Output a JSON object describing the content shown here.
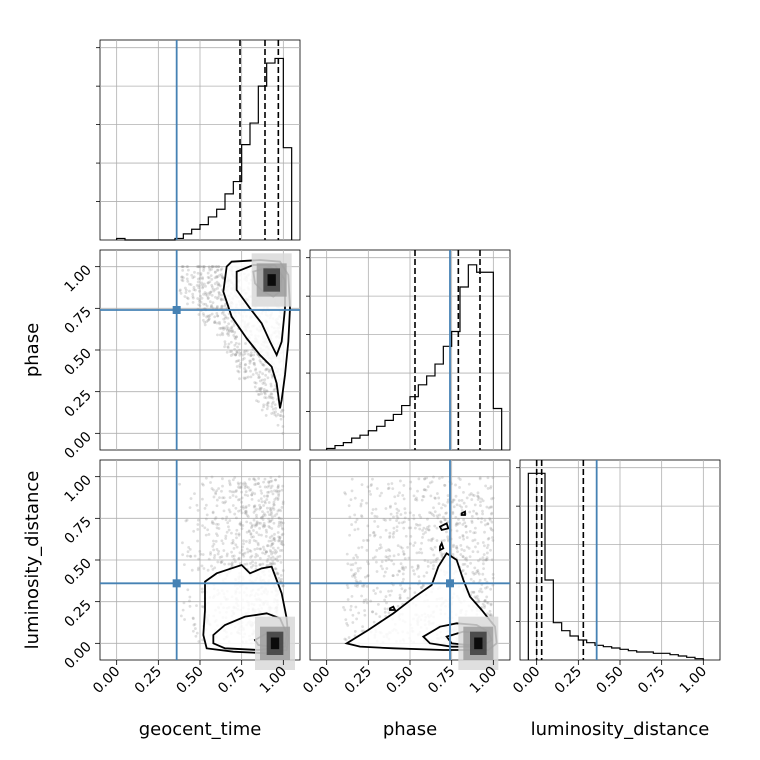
{
  "chart_data": {
    "type": "corner",
    "parameters": [
      "geocent_time",
      "phase",
      "luminosity_distance"
    ],
    "axis_range": [
      -0.1,
      1.1
    ],
    "tick_values": [
      0.0,
      0.25,
      0.5,
      0.75,
      1.0
    ],
    "tick_labels": [
      "0.00",
      "0.25",
      "0.50",
      "0.75",
      "1.00"
    ],
    "grid": true,
    "truths": {
      "geocent_time": 0.36,
      "phase": 0.74,
      "luminosity_distance": 0.36
    },
    "marginals": [
      {
        "parameter": "geocent_time",
        "bins": [
          0.0,
          0.05,
          0.1,
          0.15,
          0.2,
          0.25,
          0.3,
          0.35,
          0.4,
          0.45,
          0.5,
          0.55,
          0.6,
          0.65,
          0.7,
          0.75,
          0.8,
          0.85,
          0.9,
          0.95,
          1.0
        ],
        "counts": [
          1,
          0,
          0,
          0,
          0,
          0,
          0,
          1,
          4,
          7,
          10,
          15,
          20,
          30,
          38,
          62,
          76,
          100,
          115,
          118,
          60
        ],
        "ylim": [
          0,
          130
        ],
        "quantiles": [
          0.74,
          0.89,
          0.97
        ]
      },
      {
        "parameter": "phase",
        "bins": [
          0.0,
          0.05,
          0.1,
          0.15,
          0.2,
          0.25,
          0.3,
          0.35,
          0.4,
          0.45,
          0.5,
          0.55,
          0.6,
          0.65,
          0.7,
          0.75,
          0.8,
          0.85,
          0.9,
          0.95,
          1.0
        ],
        "counts": [
          1,
          3,
          5,
          8,
          10,
          13,
          16,
          20,
          24,
          30,
          36,
          44,
          50,
          58,
          70,
          80,
          110,
          125,
          120,
          120,
          28
        ],
        "ylim": [
          0,
          135
        ],
        "quantiles": [
          0.53,
          0.79,
          0.92
        ]
      },
      {
        "parameter": "luminosity_distance",
        "bins": [
          -0.05,
          0.0,
          0.05,
          0.1,
          0.15,
          0.2,
          0.25,
          0.3,
          0.35,
          0.4,
          0.45,
          0.5,
          0.55,
          0.6,
          0.65,
          0.7,
          0.75,
          0.8,
          0.85,
          0.9,
          0.95,
          1.0
        ],
        "counts": [
          140,
          140,
          60,
          28,
          22,
          18,
          15,
          13,
          11,
          10,
          9,
          8,
          7,
          6,
          6,
          5,
          5,
          4,
          3,
          2,
          1
        ],
        "ylim": [
          0,
          150
        ],
        "quantiles": [
          0.0,
          0.03,
          0.28
        ]
      }
    ],
    "pairs": [
      {
        "x": "geocent_time",
        "y": "phase",
        "contours": [
          [
            [
              0.66,
              1.0
            ],
            [
              0.69,
              1.03
            ],
            [
              0.86,
              1.04
            ],
            [
              0.98,
              1.03
            ],
            [
              1.03,
              0.95
            ],
            [
              1.04,
              0.75
            ],
            [
              1.03,
              0.55
            ],
            [
              1.01,
              0.35
            ],
            [
              0.99,
              0.2
            ],
            [
              0.98,
              0.15
            ],
            [
              0.96,
              0.3
            ],
            [
              0.93,
              0.4
            ],
            [
              0.86,
              0.47
            ],
            [
              0.78,
              0.57
            ],
            [
              0.69,
              0.7
            ],
            [
              0.64,
              0.85
            ],
            [
              0.66,
              1.0
            ]
          ],
          [
            [
              0.72,
              0.97
            ],
            [
              0.82,
              1.01
            ],
            [
              0.95,
              1.01
            ],
            [
              1.01,
              0.92
            ],
            [
              1.01,
              0.75
            ],
            [
              0.99,
              0.55
            ],
            [
              0.96,
              0.47
            ],
            [
              0.92,
              0.55
            ],
            [
              0.87,
              0.66
            ],
            [
              0.8,
              0.75
            ],
            [
              0.72,
              0.86
            ],
            [
              0.72,
              0.97
            ]
          ],
          [
            [
              0.82,
              0.97
            ],
            [
              0.92,
              1.0
            ],
            [
              0.99,
              0.95
            ],
            [
              0.98,
              0.85
            ],
            [
              0.94,
              0.82
            ],
            [
              0.88,
              0.85
            ],
            [
              0.83,
              0.9
            ],
            [
              0.82,
              0.97
            ]
          ]
        ],
        "density_peak": [
          0.93,
          0.92
        ]
      },
      {
        "x": "geocent_time",
        "y": "luminosity_distance",
        "contours": [
          [
            [
              0.53,
              0.37
            ],
            [
              0.6,
              0.42
            ],
            [
              0.69,
              0.45
            ],
            [
              0.75,
              0.47
            ],
            [
              0.8,
              0.42
            ],
            [
              0.87,
              0.45
            ],
            [
              0.93,
              0.46
            ],
            [
              0.96,
              0.38
            ],
            [
              0.99,
              0.3
            ],
            [
              1.02,
              0.15
            ],
            [
              1.03,
              0.03
            ],
            [
              1.02,
              -0.04
            ],
            [
              0.9,
              -0.06
            ],
            [
              0.7,
              -0.05
            ],
            [
              0.54,
              -0.03
            ],
            [
              0.52,
              0.05
            ],
            [
              0.53,
              0.2
            ],
            [
              0.53,
              0.37
            ]
          ],
          [
            [
              0.58,
              0.05
            ],
            [
              0.65,
              0.11
            ],
            [
              0.77,
              0.16
            ],
            [
              0.9,
              0.18
            ],
            [
              0.98,
              0.15
            ],
            [
              1.02,
              0.06
            ],
            [
              1.01,
              -0.02
            ],
            [
              0.85,
              -0.04
            ],
            [
              0.65,
              -0.03
            ],
            [
              0.58,
              0.0
            ],
            [
              0.58,
              0.05
            ]
          ],
          [
            [
              0.83,
              0.02
            ],
            [
              0.9,
              0.06
            ],
            [
              0.98,
              0.05
            ],
            [
              1.0,
              0.0
            ],
            [
              0.93,
              -0.02
            ],
            [
              0.85,
              -0.01
            ],
            [
              0.83,
              0.02
            ]
          ]
        ],
        "density_peak": [
          0.95,
          0.0
        ]
      },
      {
        "x": "phase",
        "y": "luminosity_distance",
        "contours": [
          [
            [
              0.12,
              0.0
            ],
            [
              0.25,
              0.08
            ],
            [
              0.4,
              0.18
            ],
            [
              0.53,
              0.28
            ],
            [
              0.63,
              0.35
            ],
            [
              0.67,
              0.46
            ],
            [
              0.72,
              0.54
            ],
            [
              0.78,
              0.5
            ],
            [
              0.82,
              0.38
            ],
            [
              0.86,
              0.28
            ],
            [
              0.93,
              0.2
            ],
            [
              1.01,
              0.1
            ],
            [
              1.02,
              0.0
            ],
            [
              0.97,
              -0.04
            ],
            [
              0.7,
              -0.04
            ],
            [
              0.4,
              -0.03
            ],
            [
              0.2,
              -0.02
            ],
            [
              0.12,
              0.0
            ]
          ],
          [
            [
              0.58,
              0.04
            ],
            [
              0.68,
              0.1
            ],
            [
              0.78,
              0.12
            ],
            [
              0.9,
              0.11
            ],
            [
              0.97,
              0.07
            ],
            [
              0.99,
              0.02
            ],
            [
              0.93,
              -0.02
            ],
            [
              0.75,
              -0.02
            ],
            [
              0.62,
              0.0
            ],
            [
              0.58,
              0.04
            ]
          ],
          [
            [
              0.72,
              0.04
            ],
            [
              0.82,
              0.07
            ],
            [
              0.93,
              0.06
            ],
            [
              0.95,
              0.01
            ],
            [
              0.85,
              -0.01
            ],
            [
              0.75,
              0.0
            ],
            [
              0.72,
              0.04
            ]
          ],
          [
            [
              0.68,
              0.7
            ],
            [
              0.72,
              0.72
            ],
            [
              0.73,
              0.69
            ],
            [
              0.69,
              0.68
            ],
            [
              0.68,
              0.7
            ]
          ],
          [
            [
              0.81,
              0.78
            ],
            [
              0.83,
              0.79
            ],
            [
              0.83,
              0.77
            ],
            [
              0.81,
              0.77
            ],
            [
              0.81,
              0.78
            ]
          ],
          [
            [
              0.68,
              0.58
            ],
            [
              0.69,
              0.6
            ],
            [
              0.7,
              0.57
            ],
            [
              0.68,
              0.56
            ],
            [
              0.68,
              0.58
            ]
          ],
          [
            [
              0.38,
              0.21
            ],
            [
              0.4,
              0.22
            ],
            [
              0.41,
              0.2
            ],
            [
              0.38,
              0.2
            ],
            [
              0.38,
              0.21
            ]
          ]
        ],
        "density_peak": [
          0.91,
          0.0
        ]
      }
    ]
  }
}
